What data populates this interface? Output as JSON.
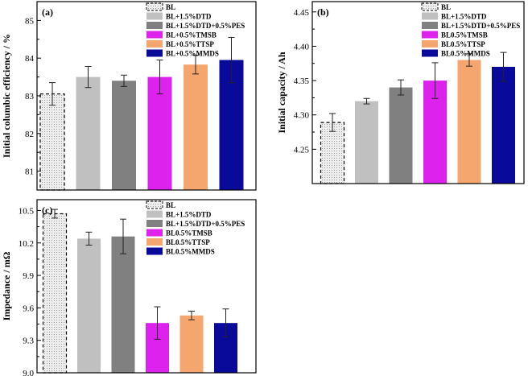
{
  "figure": {
    "colors": {
      "BL": "#e6e6e6",
      "DTD": "#c0c0c0",
      "DTD_PES": "#808080",
      "TMSB": "#dd22ee",
      "TTSP": "#f5a66e",
      "MMDS": "#0a0a9a"
    }
  },
  "chart_data": [
    {
      "type": "bar",
      "panel_label": "(a)",
      "ylabel": "Initial columbic efficiency / %",
      "ylim": [
        80.5,
        85.5
      ],
      "yticks": [
        81,
        82,
        83,
        84,
        85
      ],
      "ytick_labels": [
        "81",
        "82",
        "83",
        "84",
        "85"
      ],
      "legend": [
        "BL",
        "BL+1.5%DTD",
        "BL+1.5%DTD+0.5%PES",
        "BL+0.5%TMSB",
        "BL+0.5%TTSP",
        "BL+0.5%MMDS"
      ],
      "categories": [
        "BL",
        "BL+1.5%DTD",
        "BL+1.5%DTD+0.5%PES",
        "BL+0.5%TMSB",
        "BL+0.5%TTSP",
        "BL+0.5%MMDS"
      ],
      "color_keys": [
        "BL",
        "DTD",
        "DTD_PES",
        "TMSB",
        "TTSP",
        "MMDS"
      ],
      "values": [
        83.05,
        83.5,
        83.4,
        83.5,
        83.83,
        83.95
      ],
      "errors": [
        0.3,
        0.28,
        0.15,
        0.45,
        0.25,
        0.6
      ],
      "legend_position": "top-right"
    },
    {
      "type": "bar",
      "panel_label": "(b)",
      "ylabel": "Initial capacity / Ah",
      "ylim": [
        4.2,
        4.465
      ],
      "yticks": [
        4.25,
        4.3,
        4.35,
        4.4,
        4.45
      ],
      "ytick_labels": [
        "4.25",
        "4.30",
        "4.35",
        "4.40",
        "4.45"
      ],
      "legend": [
        "BL",
        "BL+1.5%DTD",
        "BL+1.5%DTD+0.5%PES",
        "BL0.5%TMSB",
        "BL0.5%TTSP",
        "BL0.5%MMDS"
      ],
      "categories": [
        "BL",
        "BL+1.5%DTD",
        "BL+1.5%DTD+0.5%PES",
        "BL0.5%TMSB",
        "BL0.5%TTSP",
        "BL0.5%MMDS"
      ],
      "color_keys": [
        "BL",
        "DTD",
        "DTD_PES",
        "TMSB",
        "TTSP",
        "MMDS"
      ],
      "values": [
        4.289,
        4.32,
        4.34,
        4.35,
        4.38,
        4.37
      ],
      "errors": [
        0.013,
        0.004,
        0.011,
        0.026,
        0.009,
        0.021
      ],
      "legend_position": "top-right"
    },
    {
      "type": "bar",
      "panel_label": "(c)",
      "ylabel": "Impedance / mΩ",
      "ylim": [
        9.0,
        10.6
      ],
      "yticks": [
        9.0,
        9.3,
        9.6,
        9.9,
        10.2,
        10.5
      ],
      "ytick_labels": [
        "9.0",
        "9.3",
        "9.6",
        "9.9",
        "10.2",
        "10.5"
      ],
      "legend": [
        "BL",
        "BL+1.5%DTD",
        "BL+1.5%DTD+0.5%PES",
        "BL0.5%TMSB",
        "BL0.5%TTSP",
        "BL0.5%MMDS"
      ],
      "categories": [
        "BL",
        "BL+1.5%DTD",
        "BL+1.5%DTD+0.5%PES",
        "BL0.5%TMSB",
        "BL0.5%TTSP",
        "BL0.5%MMDS"
      ],
      "color_keys": [
        "BL",
        "DTD",
        "DTD_PES",
        "TMSB",
        "TTSP",
        "MMDS"
      ],
      "values": [
        10.47,
        10.24,
        10.26,
        9.46,
        9.53,
        9.46
      ],
      "errors": [
        0.04,
        0.06,
        0.16,
        0.15,
        0.04,
        0.13
      ],
      "legend_position": "top-right"
    }
  ]
}
